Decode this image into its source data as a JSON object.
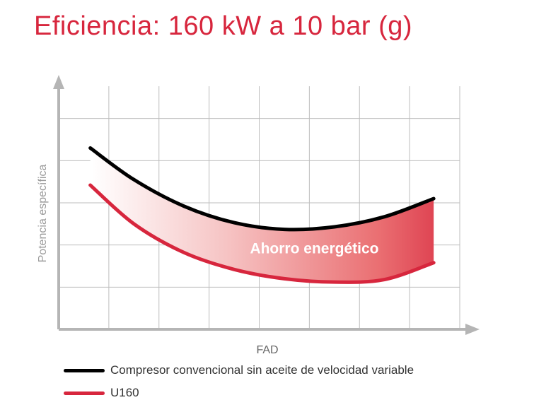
{
  "title": "Eficiencia: 160 kW a 10 bar (g)",
  "chart_data": {
    "type": "line",
    "title": "Eficiencia: 160 kW a 10 bar (g)",
    "xlabel": "FAD",
    "ylabel": "Potencia específica",
    "x_ticks_labeled": false,
    "y_ticks_labeled": false,
    "grid": true,
    "xlim": [
      0,
      8
    ],
    "ylim": [
      0,
      6
    ],
    "x": [
      0.63,
      1.5,
      2.5,
      3.5,
      4.5,
      5.5,
      6.5,
      7.48
    ],
    "series": [
      {
        "name": "Compresor convencional sin aceite de velocidad variable",
        "color": "#000000",
        "values": [
          4.3,
          3.55,
          2.92,
          2.53,
          2.37,
          2.43,
          2.67,
          3.1
        ]
      },
      {
        "name": "U160",
        "color": "#d7263d",
        "values": [
          3.42,
          2.5,
          1.82,
          1.42,
          1.2,
          1.12,
          1.18,
          1.58
        ]
      }
    ],
    "annotations": [
      {
        "text": "Ahorro energético",
        "x": 5.1,
        "y": 1.8
      }
    ],
    "legend_position": "bottom-left"
  },
  "legend": [
    {
      "label": "Compresor convencional sin aceite de velocidad variable",
      "color": "#000000"
    },
    {
      "label": "U160",
      "color": "#d7263d"
    }
  ]
}
